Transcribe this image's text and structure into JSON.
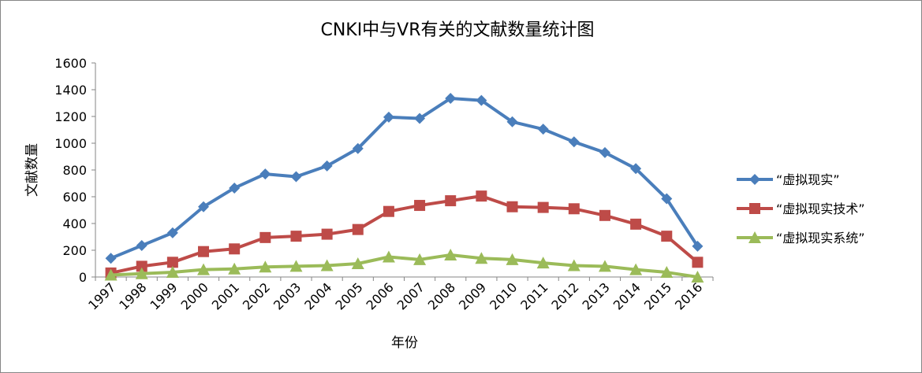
{
  "chart_data": {
    "type": "line",
    "title": "CNKI中与VR有关的文献数量统计图",
    "xlabel": "年份",
    "ylabel": "文献数量",
    "ylim": [
      0,
      1600
    ],
    "yticks": [
      0,
      200,
      400,
      600,
      800,
      1000,
      1200,
      1400,
      1600
    ],
    "categories": [
      "1997",
      "1998",
      "1999",
      "2000",
      "2001",
      "2002",
      "2003",
      "2004",
      "2005",
      "2006",
      "2007",
      "2008",
      "2009",
      "2010",
      "2011",
      "2012",
      "2013",
      "2014",
      "2015",
      "2016"
    ],
    "grid": false,
    "legend_position": "right",
    "series": [
      {
        "name": "“虚拟现实”",
        "color": "#4A7EBB",
        "marker": "diamond",
        "values": [
          140,
          235,
          330,
          525,
          665,
          770,
          750,
          830,
          960,
          1195,
          1185,
          1335,
          1320,
          1160,
          1105,
          1010,
          930,
          810,
          585,
          230
        ]
      },
      {
        "name": "“虚拟现实技术”",
        "color": "#BE4B48",
        "marker": "square",
        "values": [
          30,
          80,
          110,
          190,
          210,
          295,
          305,
          320,
          355,
          490,
          535,
          570,
          605,
          525,
          520,
          510,
          460,
          395,
          305,
          110
        ]
      },
      {
        "name": "“虚拟现实系统”",
        "color": "#9BBB59",
        "marker": "triangle",
        "values": [
          15,
          25,
          35,
          55,
          60,
          75,
          80,
          85,
          100,
          150,
          130,
          165,
          140,
          130,
          105,
          85,
          80,
          55,
          35,
          0
        ]
      }
    ]
  }
}
